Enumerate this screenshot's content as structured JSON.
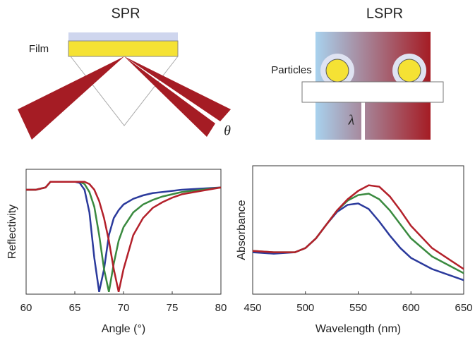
{
  "chart_data": [
    {
      "type": "line",
      "title": "SPR",
      "annotations": [
        "Film",
        "θ"
      ],
      "xlabel": "Angle (°)",
      "ylabel": "Reflectivity",
      "x": [
        60,
        61,
        62,
        62.5,
        63,
        64,
        65,
        65.5,
        66,
        66.5,
        67,
        67.5,
        68,
        68.5,
        69,
        69.5,
        70,
        71,
        72,
        73,
        74,
        75,
        76,
        78,
        80
      ],
      "series": [
        {
          "color": "#2b3a9c",
          "values": [
            0.9,
            0.9,
            0.92,
            0.97,
            0.97,
            0.97,
            0.97,
            0.96,
            0.9,
            0.7,
            0.3,
            0.0,
            0.2,
            0.5,
            0.65,
            0.72,
            0.77,
            0.82,
            0.85,
            0.87,
            0.88,
            0.89,
            0.9,
            0.91,
            0.92
          ]
        },
        {
          "color": "#3a8a3f",
          "values": [
            0.9,
            0.9,
            0.92,
            0.97,
            0.97,
            0.97,
            0.97,
            0.97,
            0.95,
            0.88,
            0.75,
            0.5,
            0.2,
            0.0,
            0.25,
            0.45,
            0.57,
            0.7,
            0.77,
            0.81,
            0.84,
            0.86,
            0.88,
            0.9,
            0.92
          ]
        },
        {
          "color": "#b3202a",
          "values": [
            0.9,
            0.9,
            0.92,
            0.97,
            0.97,
            0.97,
            0.97,
            0.97,
            0.97,
            0.95,
            0.9,
            0.8,
            0.65,
            0.45,
            0.2,
            0.0,
            0.2,
            0.5,
            0.65,
            0.74,
            0.79,
            0.83,
            0.86,
            0.89,
            0.92
          ]
        }
      ],
      "xlim": [
        60,
        80
      ],
      "xticks": [
        60,
        65,
        70,
        75,
        80
      ],
      "ylim": [
        -0.02,
        1.08
      ]
    },
    {
      "type": "line",
      "title": "LSPR",
      "annotations": [
        "Particles",
        "λ"
      ],
      "xlabel": "Wavelength (nm)",
      "ylabel": "Absorbance",
      "x": [
        450,
        470,
        490,
        500,
        510,
        520,
        530,
        540,
        550,
        560,
        570,
        580,
        590,
        600,
        620,
        650
      ],
      "series": [
        {
          "color": "#2b3a9c",
          "values": [
            0.3,
            0.29,
            0.3,
            0.33,
            0.4,
            0.5,
            0.59,
            0.64,
            0.65,
            0.61,
            0.52,
            0.42,
            0.33,
            0.26,
            0.18,
            0.1
          ]
        },
        {
          "color": "#3a8a3f",
          "values": [
            0.31,
            0.3,
            0.3,
            0.33,
            0.4,
            0.5,
            0.6,
            0.67,
            0.71,
            0.72,
            0.68,
            0.6,
            0.5,
            0.4,
            0.27,
            0.15
          ]
        },
        {
          "color": "#b3202a",
          "values": [
            0.31,
            0.3,
            0.3,
            0.33,
            0.4,
            0.5,
            0.6,
            0.68,
            0.74,
            0.78,
            0.77,
            0.7,
            0.6,
            0.49,
            0.33,
            0.18
          ]
        }
      ],
      "xlim": [
        450,
        650
      ],
      "xticks": [
        450,
        500,
        550,
        600,
        650
      ],
      "ylim": [
        0,
        0.92
      ]
    }
  ]
}
